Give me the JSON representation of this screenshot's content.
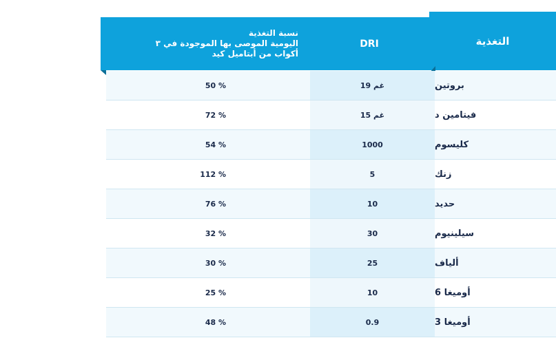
{
  "table": {
    "headers": {
      "nutrition": "التغذية",
      "dri": "DRI",
      "percent": "نسبة التغذية\nاليومية الموصى بها الموجودة في ٣\nأكواب من أبتاميل كيد"
    },
    "rows": [
      {
        "name": "بروتين",
        "dri": "19 غم",
        "pct": "50 %"
      },
      {
        "name": "فيتامين د",
        "dri": "15 غم",
        "pct": "72 %"
      },
      {
        "name": "كليسوم",
        "dri": "1000",
        "pct": "54 %"
      },
      {
        "name": "زنك",
        "dri": "5",
        "pct": "112 %"
      },
      {
        "name": "حديد",
        "dri": "10",
        "pct": "76 %"
      },
      {
        "name": "سيلينيوم",
        "dri": "30",
        "pct": "32 %"
      },
      {
        "name": "ألياف",
        "dri": "25",
        "pct": "30 %"
      },
      {
        "name": "أوميغا 6",
        "dri": "10",
        "pct": "25 %"
      },
      {
        "name": "أوميغا 3",
        "dri": "0.9",
        "pct": "48 %"
      }
    ]
  },
  "colors": {
    "header": "#0ea2dc",
    "text": "#1a2a4a"
  }
}
